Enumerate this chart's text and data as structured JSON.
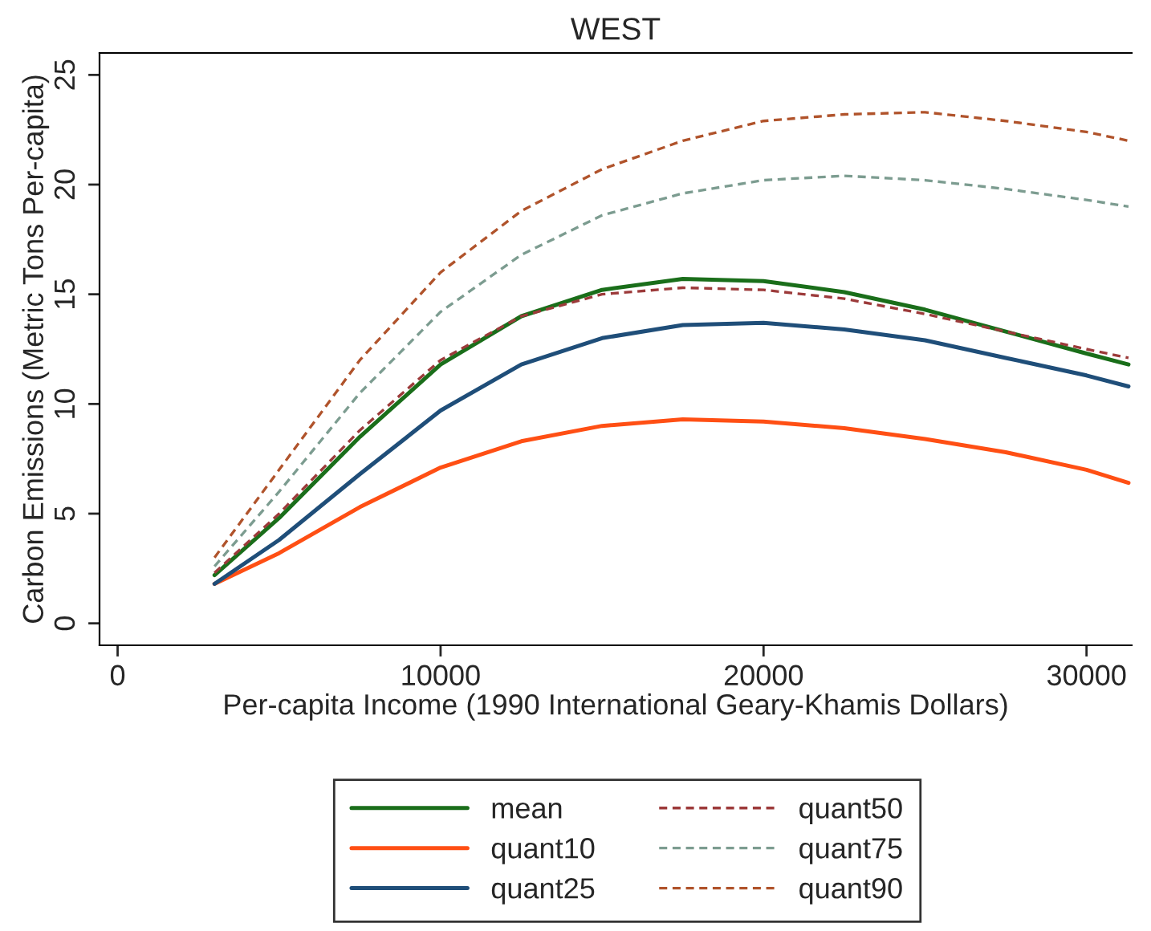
{
  "chart_data": {
    "type": "line",
    "title": "WEST",
    "xlabel": "Per-capita Income (1990 International Geary-Khamis Dollars)",
    "ylabel": "Carbon Emissions (Metric Tons Per-capita)",
    "x": [
      3000,
      5000,
      7500,
      10000,
      12500,
      15000,
      17500,
      20000,
      22500,
      25000,
      27500,
      30000,
      31300
    ],
    "series": [
      {
        "name": "mean",
        "color": "#1a6e1a",
        "line_style": "solid",
        "values": [
          2.2,
          4.8,
          8.5,
          11.8,
          14.0,
          15.2,
          15.7,
          15.6,
          15.1,
          14.3,
          13.3,
          12.3,
          11.8
        ]
      },
      {
        "name": "quant10",
        "color": "#ff4f14",
        "line_style": "solid",
        "values": [
          1.8,
          3.2,
          5.3,
          7.1,
          8.3,
          9.0,
          9.3,
          9.2,
          8.9,
          8.4,
          7.8,
          7.0,
          6.4
        ]
      },
      {
        "name": "quant25",
        "color": "#1f4e79",
        "line_style": "solid",
        "values": [
          1.8,
          3.8,
          6.8,
          9.7,
          11.8,
          13.0,
          13.6,
          13.7,
          13.4,
          12.9,
          12.1,
          11.3,
          10.8
        ]
      },
      {
        "name": "quant50",
        "color": "#9c3a3a",
        "line_style": "dashed",
        "values": [
          2.3,
          5.0,
          8.8,
          12.0,
          14.0,
          15.0,
          15.3,
          15.2,
          14.8,
          14.1,
          13.3,
          12.5,
          12.1
        ]
      },
      {
        "name": "quant75",
        "color": "#7c9c90",
        "line_style": "dashed",
        "values": [
          2.6,
          6.0,
          10.5,
          14.2,
          16.8,
          18.6,
          19.6,
          20.2,
          20.4,
          20.2,
          19.8,
          19.3,
          19.0
        ]
      },
      {
        "name": "quant90",
        "color": "#b0532b",
        "line_style": "dashed",
        "values": [
          3.0,
          7.0,
          12.0,
          16.0,
          18.8,
          20.7,
          22.0,
          22.9,
          23.2,
          23.3,
          22.9,
          22.4,
          22.0
        ]
      }
    ],
    "xlim": [
      -560,
      31400
    ],
    "ylim": [
      -1.0,
      26.0
    ],
    "xticks": [
      0,
      10000,
      20000,
      30000
    ],
    "yticks": [
      0,
      5,
      10,
      15,
      20,
      25
    ],
    "grid": false,
    "legend": "bottom"
  }
}
